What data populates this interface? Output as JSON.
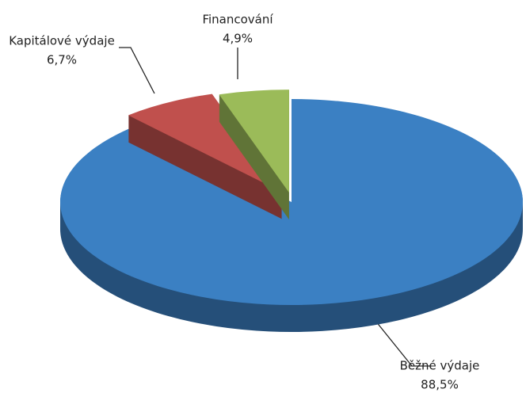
{
  "chart_data": {
    "type": "pie3d",
    "categories": [
      "Běžné výdaje",
      "Kapitálové výdaje",
      "Financování"
    ],
    "values": [
      88.5,
      6.7,
      4.9
    ],
    "value_labels": [
      "88,5%",
      "6,7%",
      "4,9%"
    ],
    "colors": [
      "#3b80c3",
      "#c0504d",
      "#9bbb59"
    ]
  }
}
